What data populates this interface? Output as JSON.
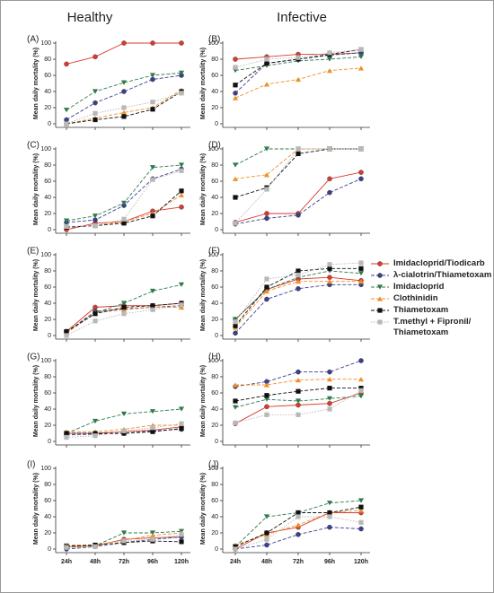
{
  "column_titles": [
    "Healthy",
    "Infective"
  ],
  "categories": [
    "24h",
    "48h",
    "72h",
    "96h",
    "120h"
  ],
  "legend": {
    "series": [
      {
        "name": "Imidacloprid/Tiodicarb",
        "color": "#d93a2e",
        "marker": "circle",
        "dash": "solid"
      },
      {
        "name": "λ-cialotrin/Thiametoxam",
        "color": "#3b3f8c",
        "marker": "circle",
        "dash": "dashed"
      },
      {
        "name": "Imidacloprid",
        "color": "#2f7a4c",
        "marker": "triangle-down",
        "dash": "dashed"
      },
      {
        "name": "Clothinidin",
        "color": "#ef8f2a",
        "marker": "triangle-up",
        "dash": "dashed"
      },
      {
        "name": "Thiametoxam",
        "color": "#111111",
        "marker": "square",
        "dash": "dashed"
      },
      {
        "name": "T.methyl + Fipronil/\nThiametoxam",
        "color": "#b8b8b8",
        "marker": "square",
        "dash": "dotted"
      }
    ]
  },
  "chart_data": [
    {
      "type": "line",
      "label": "(A)",
      "ylabel": "Mean daily mortality (%)",
      "ylim": [
        0,
        100
      ],
      "yticks": [
        0,
        20,
        40,
        60,
        80,
        100
      ],
      "series": [
        {
          "values": [
            74,
            83,
            100,
            100,
            100
          ]
        },
        {
          "values": [
            5,
            26,
            40,
            55,
            60
          ]
        },
        {
          "values": [
            17,
            40,
            51,
            60,
            63
          ]
        },
        {
          "values": [
            0,
            7,
            14,
            20,
            42
          ]
        },
        {
          "values": [
            0,
            5,
            9,
            18,
            40
          ]
        },
        {
          "values": [
            0,
            13,
            20,
            27,
            38
          ]
        }
      ]
    },
    {
      "type": "line",
      "label": "(B)",
      "ylabel": "Mean daily mortality (%)",
      "ylim": [
        0,
        100
      ],
      "yticks": [
        0,
        20,
        40,
        60,
        80,
        100
      ],
      "series": [
        {
          "values": [
            80,
            83,
            86,
            86,
            88
          ]
        },
        {
          "values": [
            38,
            75,
            80,
            85,
            88
          ]
        },
        {
          "values": [
            66,
            72,
            78,
            80,
            83
          ]
        },
        {
          "values": [
            32,
            49,
            55,
            66,
            69
          ]
        },
        {
          "values": [
            48,
            75,
            80,
            86,
            92
          ]
        },
        {
          "values": [
            70,
            80,
            82,
            88,
            92
          ]
        }
      ]
    },
    {
      "type": "line",
      "label": "(C)",
      "ylabel": "Mean daily mortality (%)",
      "ylim": [
        0,
        100
      ],
      "yticks": [
        0,
        20,
        40,
        60,
        80,
        100
      ],
      "series": [
        {
          "values": [
            0,
            8,
            10,
            23,
            28
          ]
        },
        {
          "values": [
            9,
            12,
            30,
            63,
            75
          ]
        },
        {
          "values": [
            11,
            17,
            33,
            77,
            80
          ]
        },
        {
          "values": [
            3,
            5,
            10,
            20,
            43
          ]
        },
        {
          "values": [
            3,
            5,
            8,
            17,
            48
          ]
        },
        {
          "values": [
            4,
            5,
            13,
            62,
            73
          ]
        }
      ]
    },
    {
      "type": "line",
      "label": "(D)",
      "ylabel": "Mean daily mortality (%)",
      "ylim": [
        0,
        100
      ],
      "yticks": [
        0,
        20,
        40,
        60,
        80,
        100
      ],
      "series": [
        {
          "values": [
            9,
            20,
            20,
            63,
            71
          ]
        },
        {
          "values": [
            7,
            14,
            18,
            46,
            63
          ]
        },
        {
          "values": [
            80,
            100,
            100,
            100,
            100
          ]
        },
        {
          "values": [
            63,
            68,
            100,
            100,
            100
          ]
        },
        {
          "values": [
            40,
            52,
            94,
            100,
            100
          ]
        },
        {
          "values": [
            8,
            50,
            100,
            100,
            100
          ]
        }
      ]
    },
    {
      "type": "line",
      "label": "(E)",
      "ylabel": "Mean daily mortality (%)",
      "ylim": [
        0,
        100
      ],
      "yticks": [
        0,
        20,
        40,
        60,
        80,
        100
      ],
      "series": [
        {
          "values": [
            5,
            35,
            37,
            37,
            40
          ]
        },
        {
          "values": [
            4,
            30,
            33,
            35,
            37
          ]
        },
        {
          "values": [
            4,
            28,
            40,
            55,
            63
          ]
        },
        {
          "values": [
            3,
            28,
            32,
            35,
            35
          ]
        },
        {
          "values": [
            5,
            27,
            35,
            37,
            40
          ]
        },
        {
          "values": [
            0,
            18,
            27,
            32,
            38
          ]
        }
      ]
    },
    {
      "type": "line",
      "label": "(F)",
      "ylabel": "Mean daily mortality (%)",
      "ylim": [
        0,
        100
      ],
      "yticks": [
        0,
        20,
        40,
        60,
        80,
        100
      ],
      "series": [
        {
          "values": [
            20,
            57,
            70,
            72,
            68
          ]
        },
        {
          "values": [
            3,
            45,
            58,
            63,
            63
          ]
        },
        {
          "values": [
            20,
            57,
            72,
            80,
            77
          ]
        },
        {
          "values": [
            10,
            55,
            67,
            67,
            67
          ]
        },
        {
          "values": [
            12,
            60,
            80,
            83,
            83
          ]
        },
        {
          "values": [
            17,
            70,
            75,
            88,
            90
          ]
        }
      ]
    },
    {
      "type": "line",
      "label": "(G)",
      "ylabel": "Mean daily mortality (%)",
      "ylim": [
        0,
        100
      ],
      "yticks": [
        0,
        20,
        40,
        60,
        80,
        100
      ],
      "series": [
        {
          "values": [
            10,
            10,
            12,
            14,
            18
          ]
        },
        {
          "values": [
            8,
            9,
            10,
            13,
            15
          ]
        },
        {
          "values": [
            10,
            25,
            34,
            37,
            40
          ]
        },
        {
          "values": [
            12,
            12,
            15,
            20,
            20
          ]
        },
        {
          "values": [
            10,
            10,
            10,
            12,
            16
          ]
        },
        {
          "values": [
            5,
            7,
            13,
            17,
            22
          ]
        }
      ]
    },
    {
      "type": "line",
      "label": "(H)",
      "ylabel": "Mean daily mortality (%)",
      "ylim": [
        0,
        100
      ],
      "yticks": [
        0,
        20,
        40,
        60,
        80,
        100
      ],
      "series": [
        {
          "values": [
            22,
            43,
            45,
            47,
            60
          ]
        },
        {
          "values": [
            68,
            74,
            86,
            86,
            100
          ]
        },
        {
          "values": [
            42,
            52,
            50,
            53,
            56
          ]
        },
        {
          "values": [
            70,
            70,
            76,
            77,
            77
          ]
        },
        {
          "values": [
            50,
            57,
            62,
            66,
            66
          ]
        },
        {
          "values": [
            23,
            33,
            33,
            40,
            63
          ]
        }
      ]
    },
    {
      "type": "line",
      "label": "(I)",
      "ylabel": "Mean daily mortality (%)",
      "ylim": [
        0,
        100
      ],
      "yticks": [
        0,
        20,
        40,
        60,
        80,
        100
      ],
      "series": [
        {
          "values": [
            3,
            4,
            12,
            14,
            15
          ]
        },
        {
          "values": [
            0,
            3,
            8,
            12,
            15
          ]
        },
        {
          "values": [
            4,
            4,
            20,
            20,
            22
          ]
        },
        {
          "values": [
            5,
            5,
            11,
            17,
            20
          ]
        },
        {
          "values": [
            3,
            5,
            8,
            10,
            9
          ]
        },
        {
          "values": [
            2,
            3,
            10,
            12,
            18
          ]
        }
      ]
    },
    {
      "type": "line",
      "label": "(J)",
      "ylabel": "Mean daily mortality (%)",
      "ylim": [
        0,
        100
      ],
      "yticks": [
        0,
        20,
        40,
        60,
        80,
        100
      ],
      "series": [
        {
          "values": [
            0,
            20,
            27,
            45,
            45
          ]
        },
        {
          "values": [
            0,
            5,
            18,
            27,
            25
          ]
        },
        {
          "values": [
            3,
            40,
            45,
            57,
            60
          ]
        },
        {
          "values": [
            5,
            18,
            30,
            45,
            48
          ]
        },
        {
          "values": [
            3,
            20,
            45,
            45,
            52
          ]
        },
        {
          "values": [
            0,
            12,
            40,
            40,
            33
          ]
        }
      ]
    }
  ]
}
